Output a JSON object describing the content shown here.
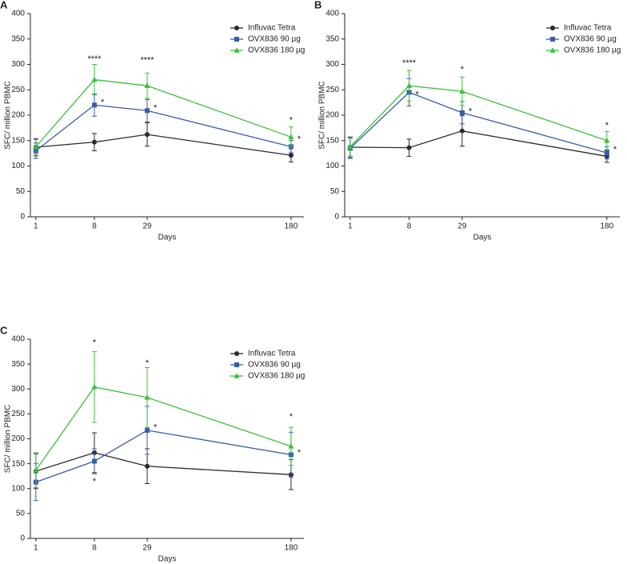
{
  "chart_data": [
    {
      "type": "line",
      "panel_label": "A",
      "ylabel": "SFC/ million PBMC",
      "xlabel": "Days",
      "categories": [
        "1",
        "8",
        "29",
        "180"
      ],
      "ylim": [
        0,
        400
      ],
      "yticks": [
        0,
        50,
        100,
        150,
        200,
        250,
        300,
        350,
        400
      ],
      "legend": "upper right",
      "series": [
        {
          "name": "Influvac Tetra",
          "color": "#2b2b2b",
          "marker": "circle",
          "values": [
            137,
            147,
            162,
            121
          ],
          "errors": [
            17,
            17,
            23,
            13
          ]
        },
        {
          "name": "OVX836 90 µg",
          "color": "#3a5ba8",
          "marker": "square",
          "values": [
            130,
            220,
            209,
            138
          ],
          "errors": [
            15,
            22,
            22,
            12
          ]
        },
        {
          "name": "OVX836 180 µg",
          "color": "#3dbf3d",
          "marker": "triangle",
          "values": [
            138,
            270,
            258,
            157
          ],
          "errors": [
            14,
            30,
            25,
            20
          ]
        }
      ],
      "annotations": [
        {
          "text": "****",
          "x": "8",
          "y": 310,
          "position": "above"
        },
        {
          "text": "*",
          "x": "8",
          "y": 225,
          "position": "right"
        },
        {
          "text": "****",
          "x": "29",
          "y": 308,
          "position": "above"
        },
        {
          "text": "*",
          "x": "29",
          "y": 214,
          "position": "right"
        },
        {
          "text": "*",
          "x": "180",
          "y": 190,
          "position": "above"
        },
        {
          "text": "*",
          "x": "180",
          "y": 153,
          "position": "right"
        }
      ]
    },
    {
      "type": "line",
      "panel_label": "B",
      "ylabel": "SFC/ million PBMC",
      "xlabel": "Days",
      "categories": [
        "1",
        "8",
        "29",
        "180"
      ],
      "ylim": [
        0,
        400
      ],
      "yticks": [
        0,
        50,
        100,
        150,
        200,
        250,
        300,
        350,
        400
      ],
      "legend": "upper right",
      "series": [
        {
          "name": "Influvac Tetra",
          "color": "#2b2b2b",
          "marker": "circle",
          "values": [
            137,
            136,
            169,
            119
          ],
          "errors": [
            20,
            17,
            30,
            12
          ]
        },
        {
          "name": "OVX836 90 µg",
          "color": "#3a5ba8",
          "marker": "square",
          "values": [
            135,
            245,
            205,
            126
          ],
          "errors": [
            20,
            27,
            22,
            12
          ]
        },
        {
          "name": "OVX836 180 µg",
          "color": "#3dbf3d",
          "marker": "triangle",
          "values": [
            138,
            258,
            247,
            150
          ],
          "errors": [
            18,
            30,
            28,
            18
          ]
        }
      ],
      "annotations": [
        {
          "text": "****",
          "x": "8",
          "y": 302,
          "position": "above"
        },
        {
          "text": "*",
          "x": "8",
          "y": 240,
          "position": "right"
        },
        {
          "text": "*",
          "x": "29",
          "y": 290,
          "position": "above"
        },
        {
          "text": "*",
          "x": "29",
          "y": 207,
          "position": "right"
        },
        {
          "text": "*",
          "x": "180",
          "y": 179,
          "position": "above"
        },
        {
          "text": "*",
          "x": "180",
          "y": 132,
          "position": "right"
        }
      ]
    },
    {
      "type": "line",
      "panel_label": "C",
      "ylabel": "SFC/ million PBMC",
      "xlabel": "Days",
      "categories": [
        "1",
        "8",
        "29",
        "180"
      ],
      "ylim": [
        0,
        400
      ],
      "yticks": [
        0,
        50,
        100,
        150,
        200,
        250,
        300,
        350,
        400
      ],
      "legend": "upper right",
      "series": [
        {
          "name": "Influvac Tetra",
          "color": "#2b2b2b",
          "marker": "circle",
          "values": [
            135,
            172,
            145,
            128
          ],
          "errors": [
            35,
            40,
            35,
            30
          ]
        },
        {
          "name": "OVX836 90 µg",
          "color": "#3a5ba8",
          "marker": "square",
          "values": [
            113,
            155,
            217,
            168
          ],
          "errors": [
            37,
            25,
            48,
            45
          ]
        },
        {
          "name": "OVX836 180 µg",
          "color": "#3dbf3d",
          "marker": "triangle",
          "values": [
            137,
            304,
            283,
            185
          ],
          "errors": [
            35,
            71,
            60,
            38
          ]
        }
      ],
      "annotations": [
        {
          "text": "*",
          "x": "8",
          "y": 393,
          "position": "above"
        },
        {
          "text": "*",
          "x": "8",
          "y": 114,
          "position": "above"
        },
        {
          "text": "*",
          "x": "29",
          "y": 352,
          "position": "above"
        },
        {
          "text": "*",
          "x": "29",
          "y": 222,
          "position": "right"
        },
        {
          "text": "*",
          "x": "180",
          "y": 244,
          "position": "above"
        },
        {
          "text": "*",
          "x": "180",
          "y": 172,
          "position": "right"
        }
      ]
    }
  ]
}
